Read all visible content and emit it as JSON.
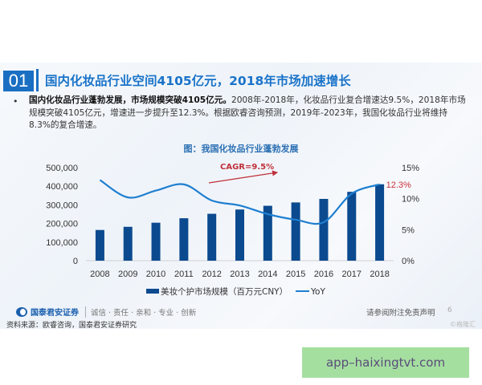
{
  "header": {
    "section_number": "01",
    "title": "国内化妆品行业空间4105亿元，2018年市场加速增长"
  },
  "body": {
    "bullet": "•",
    "bold_lead": "国内化妆品行业蓬勃发展，市场规模突破4105亿元。",
    "text": "2008年-2018年，化妆品行业复合增速达9.5%，2018年市场规模突破4105亿元，增速进一步提升至12.3%。根据欧睿咨询预测，2019年-2023年，我国化妆品行业将维持8.3%的复合增速。"
  },
  "chart_data": {
    "type": "bar",
    "title": "图：我国化妆品行业蓬勃发展",
    "categories": [
      "2008",
      "2009",
      "2010",
      "2011",
      "2012",
      "2013",
      "2014",
      "2015",
      "2016",
      "2017",
      "2018"
    ],
    "series": [
      {
        "name": "美妆个护市场规模（百万元CNY）",
        "type": "bar",
        "axis": "left",
        "color": "#0b4a8f",
        "values": [
          165000,
          182000,
          204000,
          228000,
          252000,
          275000,
          295000,
          313000,
          332000,
          370000,
          410500
        ]
      },
      {
        "name": "YoY",
        "type": "line",
        "axis": "right",
        "color": "#1f7fd0",
        "values": [
          13.0,
          10.2,
          11.3,
          12.3,
          9.7,
          8.9,
          7.5,
          6.6,
          6.2,
          10.8,
          12.3
        ]
      }
    ],
    "left_axis": {
      "ticks": [
        "0",
        "100,000",
        "200,000",
        "300,000",
        "400,000",
        "500,000"
      ],
      "ylim": [
        0,
        500000
      ]
    },
    "right_axis": {
      "ticks": [
        "0%",
        "5%",
        "10%",
        "15%"
      ],
      "ylim": [
        0,
        15
      ]
    },
    "annotations": {
      "cagr": "CAGR=9.5%",
      "last_label": "12.3%"
    },
    "legend": {
      "bar_label": "美妆个护市场规模（百万元CNY）",
      "line_label": "YoY",
      "position": "bottom"
    },
    "grid": false
  },
  "footer": {
    "logo_text": "国泰君安证券",
    "motto": "诚信 · 责任 · 亲和 · 专业 · 创新",
    "disclaimer": "请参阅附注免责声明",
    "page_number": "6",
    "source": "资料来源：欧睿咨询，国泰君安证券研究",
    "watermark": "©格隆汇"
  },
  "ad_banner": {
    "text": "app–haixingtvt.com"
  }
}
